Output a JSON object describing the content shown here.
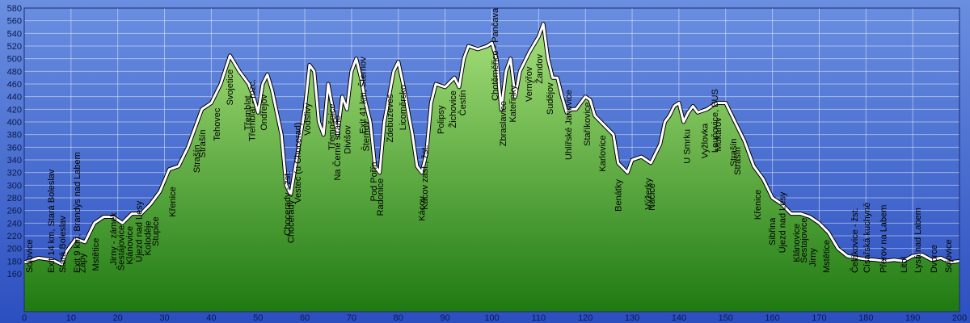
{
  "chart_data": {
    "type": "area",
    "x": [
      0,
      3,
      6,
      8,
      9,
      11,
      13,
      15,
      17,
      19,
      21,
      23,
      25,
      27,
      29,
      31,
      33,
      35,
      37,
      38,
      40,
      42,
      44,
      46,
      48,
      49,
      50,
      51,
      52,
      53,
      55,
      56,
      57,
      58,
      60,
      61,
      62,
      63,
      64,
      65,
      66,
      67,
      68,
      69,
      70,
      71,
      72,
      73,
      74,
      75,
      76,
      77,
      78,
      79,
      80,
      81,
      82,
      83,
      84,
      85,
      86,
      87,
      88,
      90,
      92,
      93,
      94,
      95,
      97,
      99,
      100,
      101,
      102,
      103,
      104,
      105,
      106,
      108,
      110,
      111,
      112,
      113,
      114,
      115,
      116,
      117,
      118,
      120,
      121,
      122,
      124,
      126,
      127,
      129,
      130,
      132,
      134,
      136,
      137,
      138,
      139,
      140,
      141,
      142,
      143,
      144,
      146,
      148,
      150,
      152,
      154,
      156,
      158,
      160,
      162,
      164,
      166,
      168,
      170,
      172,
      174,
      176,
      178,
      180,
      182,
      184,
      186,
      188,
      190,
      192,
      194,
      196,
      198,
      200
    ],
    "values": [
      178,
      185,
      182,
      175,
      195,
      215,
      210,
      240,
      250,
      250,
      240,
      255,
      255,
      270,
      290,
      325,
      330,
      360,
      400,
      420,
      430,
      460,
      505,
      480,
      460,
      440,
      415,
      460,
      475,
      450,
      380,
      300,
      285,
      330,
      420,
      490,
      480,
      400,
      380,
      460,
      420,
      380,
      440,
      420,
      480,
      500,
      470,
      430,
      400,
      330,
      320,
      400,
      440,
      480,
      495,
      460,
      420,
      380,
      330,
      320,
      350,
      430,
      460,
      455,
      470,
      455,
      500,
      520,
      515,
      520,
      525,
      500,
      420,
      480,
      500,
      440,
      480,
      510,
      535,
      555,
      500,
      470,
      470,
      440,
      415,
      420,
      420,
      440,
      435,
      410,
      395,
      380,
      335,
      320,
      340,
      345,
      335,
      365,
      400,
      410,
      425,
      430,
      400,
      415,
      425,
      415,
      420,
      430,
      430,
      400,
      370,
      330,
      310,
      280,
      270,
      255,
      255,
      250,
      240,
      225,
      200,
      188,
      185,
      183,
      182,
      180,
      182,
      180,
      188,
      190,
      182,
      185,
      178,
      180
    ],
    "xlim": [
      0,
      200
    ],
    "ylim": [
      100,
      580
    ],
    "xticks": [
      0,
      10,
      20,
      30,
      40,
      50,
      60,
      70,
      80,
      90,
      100,
      110,
      120,
      130,
      140,
      150,
      160,
      170,
      180,
      190,
      200
    ],
    "yticks": [
      160,
      180,
      200,
      220,
      240,
      260,
      280,
      300,
      320,
      340,
      360,
      380,
      400,
      420,
      440,
      460,
      480,
      500,
      520,
      540,
      560,
      580
    ],
    "grid": true,
    "color": "#3fa828",
    "line_color": "#ffffff",
    "annotations": [
      {
        "x": 1,
        "text": "Sojovice"
      },
      {
        "x": 5.7,
        "text": "Exit 14 km, Stará Boleslav"
      },
      {
        "x": 8.1,
        "text": "Stará Boleslav"
      },
      {
        "x": 11.2,
        "text": "Exit 9 km, Brandýs nad Labem"
      },
      {
        "x": 12.4,
        "text": "Zápy"
      },
      {
        "x": 15.2,
        "text": "Mstětice"
      },
      {
        "x": 19,
        "text": "Jirny - zámek"
      },
      {
        "x": 20.7,
        "text": "Šestajovice"
      },
      {
        "x": 22.5,
        "text": "Klánovice"
      },
      {
        "x": 24.5,
        "text": "Újezd nad Lesy"
      },
      {
        "x": 26.4,
        "text": "Koloděje"
      },
      {
        "x": 28,
        "text": "Stupice"
      },
      {
        "x": 31.6,
        "text": "Křenice"
      },
      {
        "x": 36.8,
        "text": "Strašín"
      },
      {
        "x": 38,
        "text": "Strašín"
      },
      {
        "x": 41.1,
        "text": "Tehovec"
      },
      {
        "x": 43.9,
        "text": "Svojetice"
      },
      {
        "x": 47.7,
        "text": "Třemblat"
      },
      {
        "x": 48.7,
        "text": "Třemblat - rozc."
      },
      {
        "x": 51.2,
        "text": "Ondřejov"
      },
      {
        "x": 56.2,
        "text": "Chocerady - žst."
      },
      {
        "x": 57,
        "text": "Chocerady"
      },
      {
        "x": 58.4,
        "text": "Vestec (u Chocerad)"
      },
      {
        "x": 60.5,
        "text": "Vodslivy"
      },
      {
        "x": 65.7,
        "text": "Třemošnice"
      },
      {
        "x": 66.9,
        "text": "Na Černé straně"
      },
      {
        "x": 69.1,
        "text": "Divišov"
      },
      {
        "x": 72.3,
        "text": "Exit 41 km, Šternov"
      },
      {
        "x": 73,
        "text": "Šternov"
      },
      {
        "x": 74.7,
        "text": "Pod Pořín"
      },
      {
        "x": 76.1,
        "text": "Radonice"
      },
      {
        "x": 78.1,
        "text": "Zdebuzeves"
      },
      {
        "x": 80.9,
        "text": "Licoměrsko"
      },
      {
        "x": 85,
        "text": "Kácov"
      },
      {
        "x": 85.6,
        "text": "Kácov zast., žst."
      },
      {
        "x": 89,
        "text": "Polipsy"
      },
      {
        "x": 91.6,
        "text": "Žichovice"
      },
      {
        "x": 93.7,
        "text": "Čestín"
      },
      {
        "x": 100.6,
        "text": "Chotěměřice - Pančava"
      },
      {
        "x": 102.3,
        "text": "Zbraslavice"
      },
      {
        "x": 104.4,
        "text": "Kateřinky"
      },
      {
        "x": 107.9,
        "text": "Vernýřov"
      },
      {
        "x": 110.1,
        "text": "Žandov"
      },
      {
        "x": 112.4,
        "text": "Sudějov"
      },
      {
        "x": 116.3,
        "text": "Uhlířské Janovice"
      },
      {
        "x": 120.3,
        "text": "Staříkovice"
      },
      {
        "x": 123.6,
        "text": "Karlovice"
      },
      {
        "x": 127,
        "text": "Benátky"
      },
      {
        "x": 133.4,
        "text": "Výžerky"
      },
      {
        "x": 134.1,
        "text": "Nučice"
      },
      {
        "x": 141.7,
        "text": "U Smrku"
      },
      {
        "x": 145.5,
        "text": "Vyžlovka"
      },
      {
        "x": 147.6,
        "text": "Louňovice, BUS"
      },
      {
        "x": 148.3,
        "text": "Mukařov"
      },
      {
        "x": 151.6,
        "text": "Strašín"
      },
      {
        "x": 152.5,
        "text": "Strašín"
      },
      {
        "x": 156.8,
        "text": "Křenice"
      },
      {
        "x": 159.9,
        "text": "Sibřina"
      },
      {
        "x": 162.1,
        "text": "Újezd nad Lesy"
      },
      {
        "x": 165.1,
        "text": "Klánovice"
      },
      {
        "x": 166.6,
        "text": "Šestajovice"
      },
      {
        "x": 168.5,
        "text": "Jirny"
      },
      {
        "x": 171.5,
        "text": "Mstětice"
      },
      {
        "x": 177.5,
        "text": "Čelákovice - žst."
      },
      {
        "x": 180.1,
        "text": "Císařská kuchyně"
      },
      {
        "x": 183.7,
        "text": "Přerov na Labem"
      },
      {
        "x": 188.1,
        "text": "Litol"
      },
      {
        "x": 191,
        "text": "Lysá nad Labem"
      },
      {
        "x": 194.5,
        "text": "Dvorce"
      },
      {
        "x": 197.6,
        "text": "Sojovice"
      }
    ]
  }
}
